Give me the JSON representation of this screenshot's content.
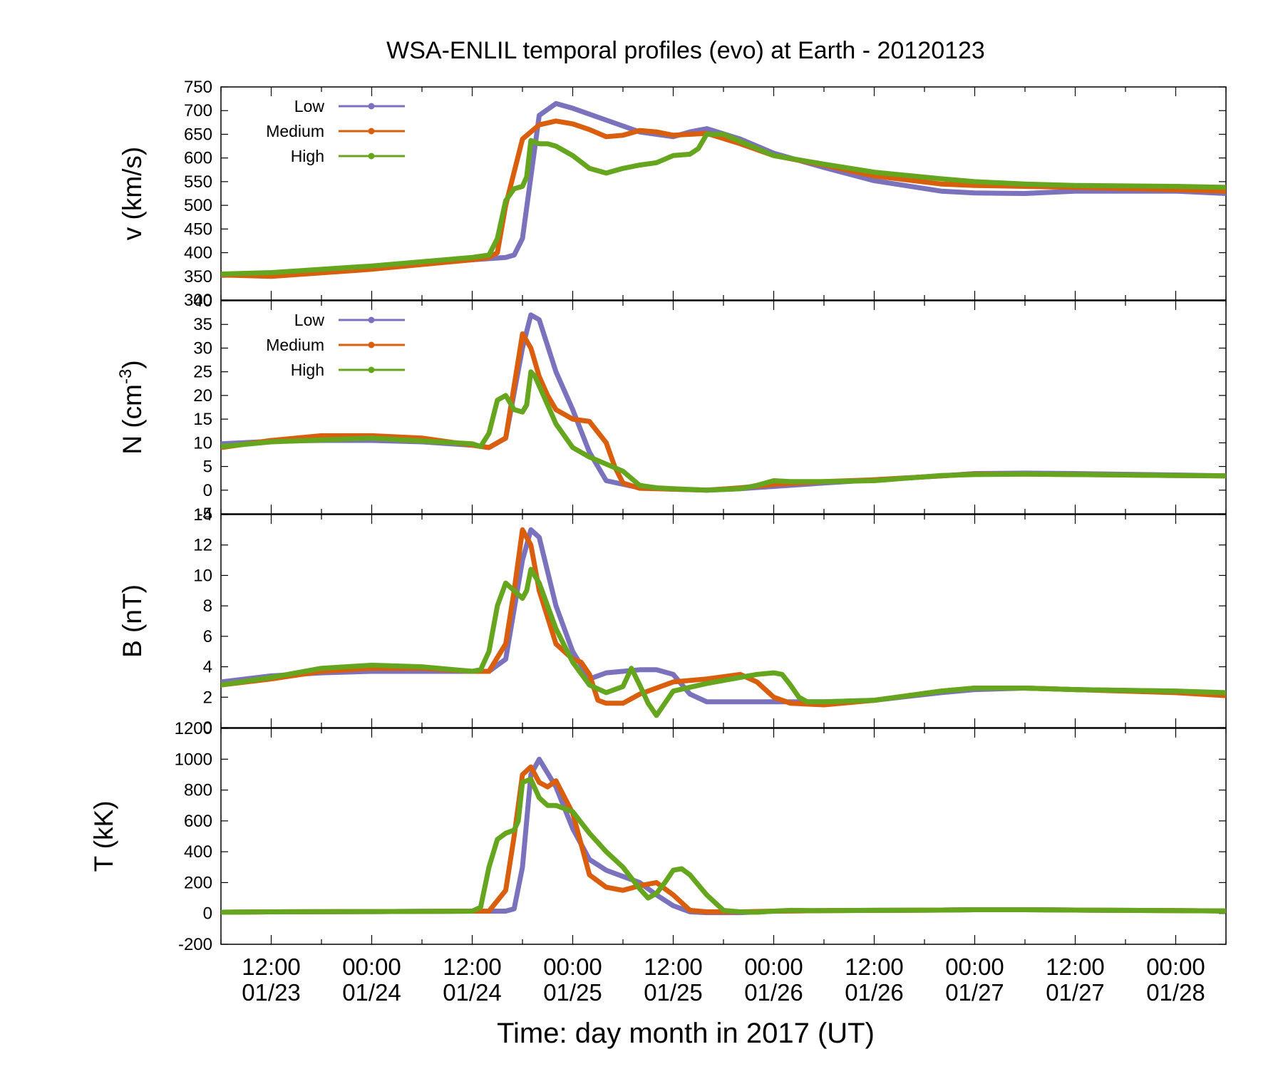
{
  "chart_data": {
    "type": "line",
    "title": "WSA-ENLIL temporal profiles (evo) at Earth - 20120123",
    "xlabel": "Time: day month in 2017 (UT)",
    "x_range_hours": [
      -6,
      114
    ],
    "x_ticks": [
      {
        "time": "12:00",
        "date": "01/23",
        "hour": 0
      },
      {
        "time": "00:00",
        "date": "01/24",
        "hour": 12
      },
      {
        "time": "12:00",
        "date": "01/24",
        "hour": 24
      },
      {
        "time": "00:00",
        "date": "01/25",
        "hour": 36
      },
      {
        "time": "12:00",
        "date": "01/25",
        "hour": 48
      },
      {
        "time": "00:00",
        "date": "01/26",
        "hour": 60
      },
      {
        "time": "12:00",
        "date": "01/26",
        "hour": 72
      },
      {
        "time": "00:00",
        "date": "01/27",
        "hour": 84
      },
      {
        "time": "12:00",
        "date": "01/27",
        "hour": 96
      },
      {
        "time": "00:00",
        "date": "01/28",
        "hour": 108
      }
    ],
    "series_styles": [
      {
        "name": "Low",
        "color": "#7b72bd"
      },
      {
        "name": "Medium",
        "color": "#d95f0e"
      },
      {
        "name": "High",
        "color": "#66a61e"
      }
    ],
    "panels": [
      {
        "id": "v",
        "ylabel": "v (km/s)",
        "ylim": [
          300,
          750
        ],
        "yticks": [
          300,
          350,
          400,
          450,
          500,
          550,
          600,
          650,
          700,
          750
        ],
        "legend": [
          "Low",
          "Medium",
          "High"
        ],
        "series": [
          {
            "name": "Low",
            "x": [
              -6,
              0,
              12,
              24,
              28,
              29,
              30,
              32,
              34,
              36,
              40,
              44,
              48,
              50,
              52,
              56,
              60,
              66,
              72,
              80,
              84,
              90,
              96,
              108,
              114
            ],
            "values": [
              352,
              355,
              370,
              385,
              390,
              395,
              430,
              690,
              715,
              705,
              680,
              655,
              645,
              655,
              662,
              640,
              610,
              580,
              552,
              530,
              526,
              525,
              530,
              530,
              525
            ]
          },
          {
            "name": "Medium",
            "x": [
              -6,
              0,
              12,
              24,
              26,
              27,
              28,
              30,
              32,
              34,
              36,
              38,
              40,
              42,
              44,
              46,
              48,
              52,
              56,
              60,
              66,
              72,
              80,
              84,
              90,
              96,
              108,
              114
            ],
            "values": [
              353,
              350,
              365,
              385,
              390,
              400,
              500,
              640,
              670,
              678,
              672,
              660,
              645,
              648,
              658,
              655,
              648,
              652,
              630,
              605,
              585,
              562,
              545,
              542,
              540,
              538,
              533,
              530
            ]
          },
          {
            "name": "High",
            "x": [
              -6,
              0,
              12,
              24,
              26,
              27,
              28,
              29,
              30,
              30.5,
              31,
              32,
              33,
              34,
              36,
              38,
              40,
              42,
              44,
              46,
              48,
              50,
              51,
              52,
              54,
              56,
              60,
              66,
              72,
              80,
              84,
              90,
              96,
              108,
              114
            ],
            "values": [
              355,
              358,
              372,
              390,
              395,
              430,
              510,
              535,
              540,
              560,
              637,
              630,
              630,
              625,
              605,
              578,
              568,
              578,
              585,
              590,
              605,
              608,
              620,
              650,
              650,
              635,
              605,
              587,
              570,
              556,
              550,
              545,
              542,
              540,
              538
            ]
          }
        ]
      },
      {
        "id": "N",
        "ylabel": "N (cm-3)",
        "ylim": [
          -5,
          40
        ],
        "yticks": [
          -5,
          0,
          5,
          10,
          15,
          20,
          25,
          30,
          35,
          40
        ],
        "legend": [
          "Low",
          "Medium",
          "High"
        ],
        "series": [
          {
            "name": "Low",
            "x": [
              -6,
              0,
              6,
              12,
              18,
              24,
              26,
              28,
              30,
              31,
              32,
              34,
              36,
              38,
              40,
              44,
              48,
              52,
              56,
              60,
              66,
              72,
              80,
              84,
              90,
              96,
              108,
              114
            ],
            "values": [
              9.8,
              10.3,
              10.5,
              10.5,
              10.2,
              9.5,
              9,
              11,
              30,
              37,
              36,
              25,
              17,
              8,
              2,
              0.5,
              0.2,
              0,
              0.3,
              0.8,
              1.5,
              2.2,
              3,
              3.5,
              3.6,
              3.5,
              3.2,
              3
            ]
          },
          {
            "name": "Medium",
            "x": [
              -6,
              0,
              6,
              12,
              18,
              24,
              26,
              28,
              29,
              30,
              31,
              32,
              33,
              34,
              36,
              38,
              40,
              41,
              42,
              44,
              48,
              52,
              56,
              60,
              66,
              72,
              80,
              84,
              90,
              96,
              108,
              114
            ],
            "values": [
              9,
              10.5,
              11.5,
              11.5,
              11,
              9.5,
              9,
              11,
              22,
              33,
              30,
              24,
              20,
              17,
              15,
              14.5,
              10,
              5,
              1.5,
              0.4,
              0.2,
              0,
              0.5,
              1.2,
              1.8,
              2.2,
              3,
              3.4,
              3.4,
              3.3,
              3.1,
              3
            ]
          },
          {
            "name": "High",
            "x": [
              -6,
              0,
              12,
              24,
              25,
              26,
              27,
              28,
              29,
              30,
              30.5,
              31,
              31.5,
              32,
              33,
              34,
              36,
              38,
              40,
              42,
              44,
              46,
              48,
              52,
              56,
              58,
              60,
              62,
              66,
              72,
              80,
              84,
              90,
              96,
              108,
              114
            ],
            "values": [
              9.2,
              10.2,
              11,
              9.8,
              9.2,
              12,
              19,
              20,
              17,
              16.5,
              18,
              25,
              24,
              22,
              18,
              14,
              9,
              7,
              5.5,
              4,
              1,
              0.5,
              0.3,
              0,
              0.3,
              1,
              2,
              1.8,
              1.8,
              2,
              3.1,
              3.3,
              3.4,
              3.3,
              3.1,
              3
            ]
          }
        ]
      },
      {
        "id": "B",
        "ylabel": "B (nT)",
        "ylim": [
          0,
          14
        ],
        "yticks": [
          0,
          2,
          4,
          6,
          8,
          10,
          12,
          14
        ],
        "legend": [],
        "series": [
          {
            "name": "Low",
            "x": [
              -6,
              0,
              6,
              12,
              18,
              24,
              26,
              28,
              30,
              31,
              32,
              34,
              36,
              38,
              40,
              44,
              46,
              48,
              50,
              52,
              56,
              60,
              66,
              72,
              80,
              84,
              90,
              96,
              108,
              114
            ],
            "values": [
              3,
              3.4,
              3.6,
              3.7,
              3.7,
              3.7,
              3.7,
              4.5,
              11,
              13,
              12.5,
              8,
              5,
              3.2,
              3.6,
              3.8,
              3.8,
              3.5,
              2.2,
              1.7,
              1.7,
              1.7,
              1.7,
              1.8,
              2.3,
              2.5,
              2.6,
              2.5,
              2.4,
              2.2
            ]
          },
          {
            "name": "Medium",
            "x": [
              -6,
              0,
              6,
              12,
              18,
              24,
              26,
              28,
              29,
              30,
              31,
              32,
              34,
              36,
              37,
              38,
              39,
              40,
              42,
              44,
              48,
              52,
              56,
              58,
              60,
              62,
              66,
              72,
              80,
              84,
              90,
              96,
              108,
              114
            ],
            "values": [
              2.8,
              3.2,
              3.7,
              3.9,
              3.9,
              3.7,
              3.7,
              5.5,
              9,
              13,
              12,
              9,
              5.5,
              4.5,
              4.3,
              3.5,
              1.8,
              1.6,
              1.6,
              2.2,
              3,
              3.2,
              3.5,
              3,
              2,
              1.6,
              1.5,
              1.8,
              2.4,
              2.6,
              2.6,
              2.5,
              2.3,
              2.1
            ]
          },
          {
            "name": "High",
            "x": [
              -6,
              0,
              6,
              12,
              18,
              24,
              25,
              26,
              27,
              28,
              29,
              30,
              30.5,
              31,
              32,
              34,
              36,
              38,
              40,
              42,
              43,
              44,
              45,
              46,
              48,
              52,
              56,
              58,
              60,
              61,
              62,
              63,
              64,
              66,
              72,
              80,
              84,
              90,
              96,
              108,
              114
            ],
            "values": [
              2.8,
              3.3,
              3.9,
              4.1,
              4,
              3.7,
              3.8,
              5,
              8,
              9.5,
              9,
              8.5,
              9,
              10.4,
              9.5,
              6.5,
              4.3,
              2.8,
              2.3,
              2.7,
              3.9,
              2.8,
              1.6,
              0.8,
              2.4,
              2.9,
              3.3,
              3.5,
              3.6,
              3.5,
              2.8,
              2,
              1.7,
              1.7,
              1.8,
              2.4,
              2.6,
              2.6,
              2.5,
              2.4,
              2.3
            ]
          }
        ]
      },
      {
        "id": "T",
        "ylabel": "T (kK)",
        "ylim": [
          -200,
          1200
        ],
        "yticks": [
          -200,
          0,
          200,
          400,
          600,
          800,
          1000,
          1200
        ],
        "legend": [],
        "series": [
          {
            "name": "Low",
            "x": [
              -6,
              0,
              12,
              24,
              28,
              29,
              30,
              31,
              32,
              34,
              36,
              38,
              40,
              42,
              44,
              46,
              48,
              50,
              52,
              56,
              60,
              66,
              72,
              80,
              84,
              90,
              96,
              108,
              114
            ],
            "values": [
              8,
              10,
              12,
              15,
              15,
              30,
              300,
              900,
              1000,
              820,
              550,
              350,
              280,
              240,
              200,
              120,
              50,
              10,
              5,
              5,
              15,
              18,
              20,
              22,
              24,
              24,
              22,
              18,
              16
            ]
          },
          {
            "name": "Medium",
            "x": [
              -6,
              0,
              12,
              24,
              26,
              28,
              29,
              30,
              31,
              32,
              33,
              34,
              36,
              38,
              40,
              42,
              44,
              46,
              48,
              50,
              52,
              56,
              60,
              66,
              72,
              80,
              84,
              90,
              96,
              108,
              114
            ],
            "values": [
              8,
              10,
              12,
              15,
              15,
              150,
              500,
              900,
              950,
              850,
              820,
              860,
              650,
              250,
              170,
              150,
              180,
              200,
              120,
              20,
              10,
              10,
              15,
              18,
              20,
              22,
              24,
              24,
              22,
              18,
              16
            ]
          },
          {
            "name": "High",
            "x": [
              -6,
              0,
              12,
              24,
              25,
              26,
              27,
              28,
              29,
              29.5,
              30,
              31,
              32,
              33,
              34,
              36,
              38,
              40,
              42,
              44,
              45,
              46,
              47,
              48,
              49,
              50,
              52,
              54,
              56,
              58,
              60,
              62,
              66,
              72,
              80,
              84,
              90,
              96,
              108,
              114
            ],
            "values": [
              8,
              10,
              12,
              15,
              40,
              300,
              480,
              520,
              540,
              600,
              850,
              870,
              750,
              700,
              700,
              660,
              520,
              400,
              300,
              160,
              100,
              130,
              200,
              280,
              290,
              250,
              120,
              20,
              10,
              8,
              15,
              20,
              18,
              20,
              22,
              24,
              24,
              22,
              18,
              16
            ]
          }
        ]
      }
    ]
  }
}
